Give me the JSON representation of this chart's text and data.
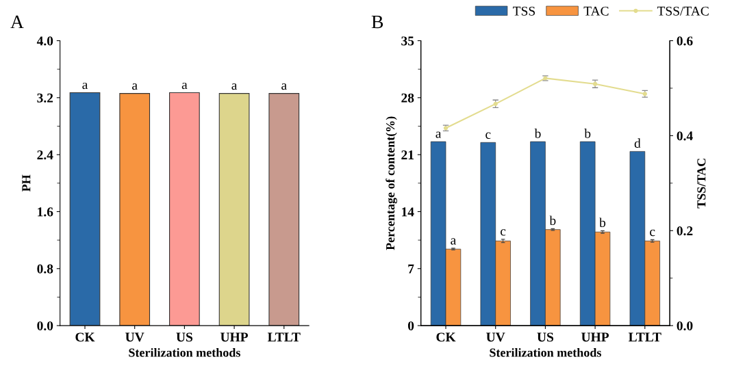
{
  "chart_data": [
    {
      "type": "bar",
      "annotations": [
        "A"
      ],
      "xlabel": "Sterilization methods",
      "ylabel": "PH",
      "categories": [
        "CK",
        "UV",
        "US",
        "UHP",
        "LTLT"
      ],
      "values": [
        3.27,
        3.26,
        3.27,
        3.26,
        3.26
      ],
      "colors": [
        "#2a6aa8",
        "#f79440",
        "#fc9a94",
        "#ddd58c",
        "#c89a8e"
      ],
      "value_labels": [
        "a",
        "a",
        "a",
        "a",
        "a"
      ],
      "ylim": [
        0,
        4.0
      ],
      "yticks": [
        {
          "value": 0,
          "label": "0.0"
        },
        0.8,
        1.6,
        2.4,
        3.2,
        {
          "value": 4,
          "label": "4.0"
        }
      ]
    },
    {
      "type": "bar",
      "annotations": [
        "B"
      ],
      "xlabel": "Sterilization methods",
      "ylabel": "Percentage of content(%)",
      "y2label": "TSS/TAC",
      "categories": [
        "CK",
        "UV",
        "US",
        "UHP",
        "LTLT"
      ],
      "series": [
        {
          "name": "TSS",
          "color": "#2a6aa8",
          "values": [
            22.6,
            22.5,
            22.6,
            22.6,
            21.4
          ],
          "value_labels": [
            "a",
            "c",
            "b",
            "b",
            "d"
          ]
        },
        {
          "name": "TAC",
          "color": "#f79440",
          "values": [
            9.4,
            10.4,
            11.8,
            11.5,
            10.4
          ],
          "errors": [
            0.1,
            0.2,
            0.1,
            0.15,
            0.15
          ],
          "value_labels": [
            "a",
            "c",
            "b",
            "b",
            "c"
          ]
        },
        {
          "name": "TSS/TAC",
          "type": "line",
          "axis": "y2",
          "color": "#e3dc8f",
          "marker": "circle",
          "values": [
            0.416,
            0.467,
            0.521,
            0.509,
            0.488
          ],
          "errors": [
            0.006,
            0.008,
            0.005,
            0.008,
            0.007
          ]
        }
      ],
      "ylim": [
        0,
        35
      ],
      "yticks": [
        0,
        7,
        14,
        21,
        28,
        35
      ],
      "y2lim": [
        0,
        0.6
      ],
      "y2ticks": [
        {
          "value": 0,
          "label": "0.0"
        },
        0.2,
        0.4,
        0.6
      ],
      "legend": "top right"
    }
  ]
}
